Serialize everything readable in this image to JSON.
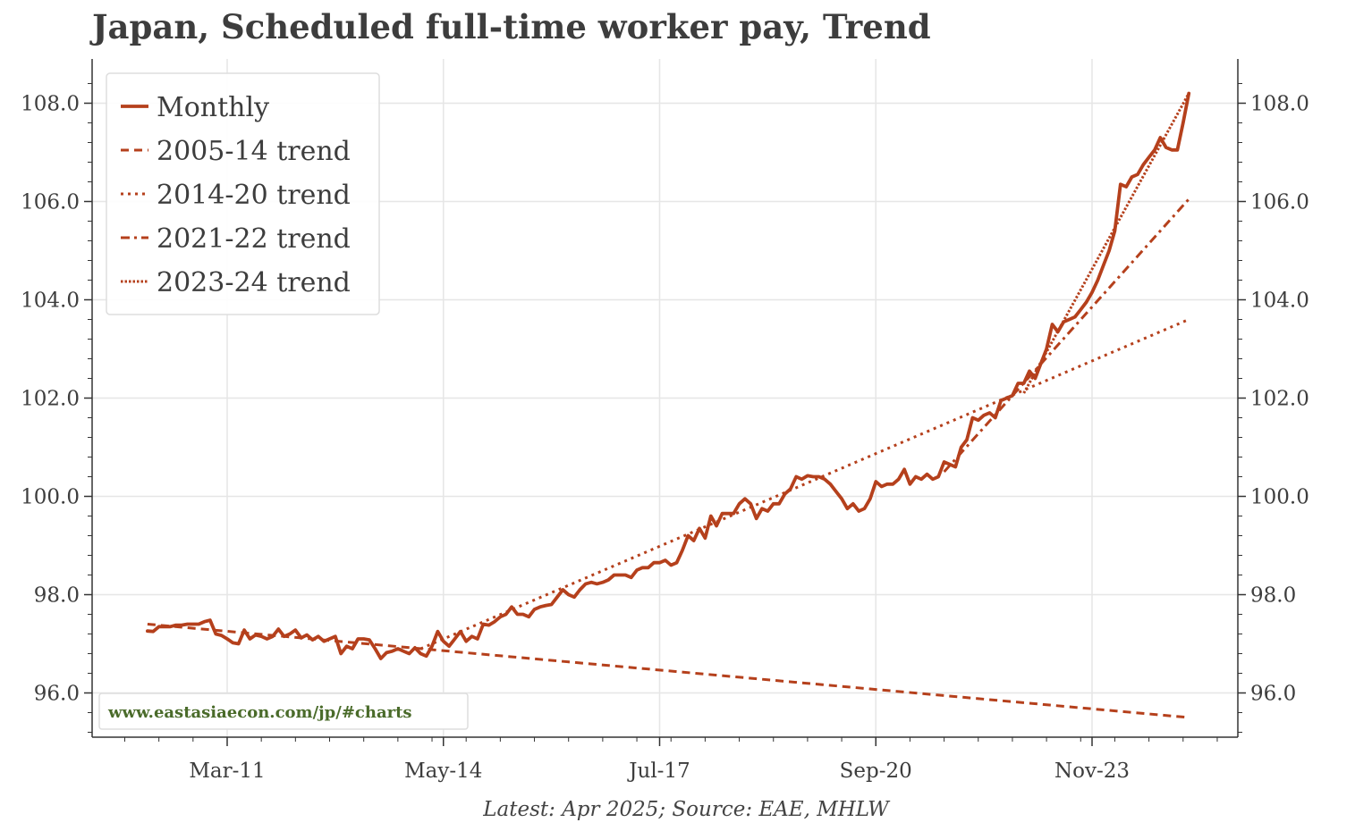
{
  "chart_data": {
    "type": "line",
    "title": "Japan, Scheduled full-time worker pay, Trend",
    "footer": "Latest: Apr 2025; Source: EAE, MHLW",
    "watermark": "www.eastasiaecon.com/jp/#charts",
    "x_ticks": [
      "Mar-11",
      "May-14",
      "Jul-17",
      "Sep-20",
      "Nov-23"
    ],
    "y_ticks": [
      "96.0",
      "98.0",
      "100.0",
      "102.0",
      "104.0",
      "106.0",
      "108.0"
    ],
    "ylim": [
      95.1,
      108.9
    ],
    "legend_position": "upper-left",
    "grid": true,
    "color": "#b5401c",
    "series": [
      {
        "name": "Monthly",
        "style": "solid",
        "points": [
          [
            "2010-01",
            97.26
          ],
          [
            "2010-02",
            97.25
          ],
          [
            "2010-03",
            97.35
          ],
          [
            "2010-04",
            97.35
          ],
          [
            "2010-05",
            97.35
          ],
          [
            "2010-06",
            97.38
          ],
          [
            "2010-07",
            97.38
          ],
          [
            "2010-08",
            97.4
          ],
          [
            "2010-09",
            97.4
          ],
          [
            "2010-10",
            97.4
          ],
          [
            "2010-11",
            97.45
          ],
          [
            "2010-12",
            97.48
          ],
          [
            "2011-01",
            97.2
          ],
          [
            "2011-02",
            97.17
          ],
          [
            "2011-03",
            97.1
          ],
          [
            "2011-04",
            97.02
          ],
          [
            "2011-05",
            97.0
          ],
          [
            "2011-06",
            97.28
          ],
          [
            "2011-07",
            97.1
          ],
          [
            "2011-08",
            97.18
          ],
          [
            "2011-09",
            97.15
          ],
          [
            "2011-10",
            97.1
          ],
          [
            "2011-11",
            97.15
          ],
          [
            "2011-12",
            97.3
          ],
          [
            "2012-01",
            97.15
          ],
          [
            "2012-02",
            97.2
          ],
          [
            "2012-03",
            97.28
          ],
          [
            "2012-04",
            97.12
          ],
          [
            "2012-05",
            97.18
          ],
          [
            "2012-06",
            97.08
          ],
          [
            "2012-07",
            97.15
          ],
          [
            "2012-08",
            97.05
          ],
          [
            "2012-09",
            97.1
          ],
          [
            "2012-10",
            97.15
          ],
          [
            "2012-11",
            96.8
          ],
          [
            "2012-12",
            96.95
          ],
          [
            "2013-01",
            96.9
          ],
          [
            "2013-02",
            97.1
          ],
          [
            "2013-03",
            97.1
          ],
          [
            "2013-04",
            97.08
          ],
          [
            "2013-05",
            96.9
          ],
          [
            "2013-06",
            96.7
          ],
          [
            "2013-07",
            96.82
          ],
          [
            "2013-08",
            96.85
          ],
          [
            "2013-09",
            96.9
          ],
          [
            "2013-10",
            96.85
          ],
          [
            "2013-11",
            96.8
          ],
          [
            "2013-12",
            96.92
          ],
          [
            "2014-01",
            96.8
          ],
          [
            "2014-02",
            96.75
          ],
          [
            "2014-03",
            96.95
          ],
          [
            "2014-04",
            97.25
          ],
          [
            "2014-05",
            97.05
          ],
          [
            "2014-06",
            96.95
          ],
          [
            "2014-07",
            97.1
          ],
          [
            "2014-08",
            97.25
          ],
          [
            "2014-09",
            97.05
          ],
          [
            "2014-10",
            97.15
          ],
          [
            "2014-11",
            97.1
          ],
          [
            "2014-12",
            97.4
          ],
          [
            "2015-01",
            97.38
          ],
          [
            "2015-02",
            97.45
          ],
          [
            "2015-03",
            97.55
          ],
          [
            "2015-04",
            97.6
          ],
          [
            "2015-05",
            97.75
          ],
          [
            "2015-06",
            97.6
          ],
          [
            "2015-07",
            97.6
          ],
          [
            "2015-08",
            97.55
          ],
          [
            "2015-09",
            97.7
          ],
          [
            "2015-10",
            97.75
          ],
          [
            "2015-11",
            97.78
          ],
          [
            "2015-12",
            97.8
          ],
          [
            "2016-01",
            97.95
          ],
          [
            "2016-02",
            98.1
          ],
          [
            "2016-03",
            98.0
          ],
          [
            "2016-04",
            97.95
          ],
          [
            "2016-05",
            98.1
          ],
          [
            "2016-06",
            98.22
          ],
          [
            "2016-07",
            98.25
          ],
          [
            "2016-08",
            98.22
          ],
          [
            "2016-09",
            98.25
          ],
          [
            "2016-10",
            98.3
          ],
          [
            "2016-11",
            98.4
          ],
          [
            "2016-12",
            98.4
          ],
          [
            "2017-01",
            98.4
          ],
          [
            "2017-02",
            98.35
          ],
          [
            "2017-03",
            98.5
          ],
          [
            "2017-04",
            98.55
          ],
          [
            "2017-05",
            98.55
          ],
          [
            "2017-06",
            98.65
          ],
          [
            "2017-07",
            98.65
          ],
          [
            "2017-08",
            98.7
          ],
          [
            "2017-09",
            98.6
          ],
          [
            "2017-10",
            98.65
          ],
          [
            "2017-11",
            98.9
          ],
          [
            "2017-12",
            99.2
          ],
          [
            "2018-01",
            99.1
          ],
          [
            "2018-02",
            99.35
          ],
          [
            "2018-03",
            99.15
          ],
          [
            "2018-04",
            99.6
          ],
          [
            "2018-05",
            99.4
          ],
          [
            "2018-06",
            99.65
          ],
          [
            "2018-07",
            99.65
          ],
          [
            "2018-08",
            99.65
          ],
          [
            "2018-09",
            99.85
          ],
          [
            "2018-10",
            99.95
          ],
          [
            "2018-11",
            99.85
          ],
          [
            "2018-12",
            99.55
          ],
          [
            "2019-01",
            99.75
          ],
          [
            "2019-02",
            99.7
          ],
          [
            "2019-03",
            99.85
          ],
          [
            "2019-04",
            99.85
          ],
          [
            "2019-05",
            100.05
          ],
          [
            "2019-06",
            100.15
          ],
          [
            "2019-07",
            100.4
          ],
          [
            "2019-08",
            100.35
          ],
          [
            "2019-09",
            100.42
          ],
          [
            "2019-10",
            100.4
          ],
          [
            "2019-11",
            100.4
          ],
          [
            "2019-12",
            100.35
          ],
          [
            "2020-01",
            100.25
          ],
          [
            "2020-02",
            100.1
          ],
          [
            "2020-03",
            99.95
          ],
          [
            "2020-04",
            99.75
          ],
          [
            "2020-05",
            99.85
          ],
          [
            "2020-06",
            99.7
          ],
          [
            "2020-07",
            99.75
          ],
          [
            "2020-08",
            99.95
          ],
          [
            "2020-09",
            100.3
          ],
          [
            "2020-10",
            100.2
          ],
          [
            "2020-11",
            100.25
          ],
          [
            "2020-12",
            100.25
          ],
          [
            "2021-01",
            100.35
          ],
          [
            "2021-02",
            100.55
          ],
          [
            "2021-03",
            100.25
          ],
          [
            "2021-04",
            100.4
          ],
          [
            "2021-05",
            100.35
          ],
          [
            "2021-06",
            100.45
          ],
          [
            "2021-07",
            100.35
          ],
          [
            "2021-08",
            100.4
          ],
          [
            "2021-09",
            100.7
          ],
          [
            "2021-10",
            100.65
          ],
          [
            "2021-11",
            100.6
          ],
          [
            "2021-12",
            101.0
          ],
          [
            "2022-01",
            101.15
          ],
          [
            "2022-02",
            101.6
          ],
          [
            "2022-03",
            101.55
          ],
          [
            "2022-04",
            101.65
          ],
          [
            "2022-05",
            101.7
          ],
          [
            "2022-06",
            101.6
          ],
          [
            "2022-07",
            101.95
          ],
          [
            "2022-08",
            102.0
          ],
          [
            "2022-09",
            102.05
          ],
          [
            "2022-10",
            102.3
          ],
          [
            "2022-11",
            102.3
          ],
          [
            "2022-12",
            102.55
          ],
          [
            "2023-01",
            102.4
          ],
          [
            "2023-02",
            102.7
          ],
          [
            "2023-03",
            103.0
          ],
          [
            "2023-04",
            103.5
          ],
          [
            "2023-05",
            103.35
          ],
          [
            "2023-06",
            103.55
          ],
          [
            "2023-07",
            103.6
          ],
          [
            "2023-08",
            103.65
          ],
          [
            "2023-09",
            103.8
          ],
          [
            "2023-10",
            103.95
          ],
          [
            "2023-11",
            104.15
          ],
          [
            "2023-12",
            104.4
          ],
          [
            "2024-01",
            104.7
          ],
          [
            "2024-02",
            105.0
          ],
          [
            "2024-03",
            105.4
          ],
          [
            "2024-04",
            106.35
          ],
          [
            "2024-05",
            106.3
          ],
          [
            "2024-06",
            106.5
          ],
          [
            "2024-07",
            106.55
          ],
          [
            "2024-08",
            106.75
          ],
          [
            "2024-09",
            106.9
          ],
          [
            "2024-10",
            107.05
          ],
          [
            "2024-11",
            107.3
          ],
          [
            "2024-12",
            107.1
          ],
          [
            "2025-01",
            107.05
          ],
          [
            "2025-02",
            107.05
          ],
          [
            "2025-03",
            107.6
          ],
          [
            "2025-04",
            108.2
          ]
        ]
      },
      {
        "name": "2005-14 trend",
        "style": "dashed",
        "points": [
          [
            "2010-01",
            97.4
          ],
          [
            "2025-04",
            95.5
          ]
        ]
      },
      {
        "name": "2014-20 trend",
        "style": "dotted",
        "points": [
          [
            "2014-01",
            96.9
          ],
          [
            "2025-04",
            103.6
          ]
        ]
      },
      {
        "name": "2021-22 trend",
        "style": "dashdot",
        "points": [
          [
            "2021-09",
            100.5
          ],
          [
            "2025-04",
            106.05
          ]
        ]
      },
      {
        "name": "2023-24 trend",
        "style": "densely-dotted",
        "points": [
          [
            "2022-11",
            102.1
          ],
          [
            "2025-04",
            108.2
          ]
        ]
      }
    ]
  }
}
